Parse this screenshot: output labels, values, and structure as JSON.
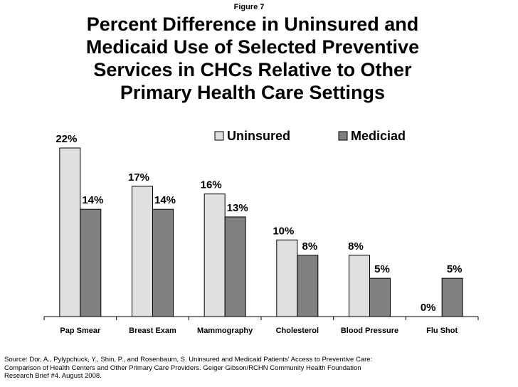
{
  "figure_label": "Figure 7",
  "title_lines": [
    "Percent Difference in Uninsured and",
    "Medicaid Use of Selected Preventive",
    "Services in CHCs Relative to Other",
    "Primary Health Care Settings"
  ],
  "source_lines": [
    "Source: Dor, A., Pylypchuck, Y., Shin, P., and Rosenbaum, S. Uninsured and Medicaid Patients' Access to Preventive Care:",
    "Comparison of Health Centers and Other Primary Care Providers. Geiger Gibson/RCHN Community Health Foundation",
    "Research Brief #4. August 2008."
  ],
  "colors": {
    "uninsured": "#e0e0e0",
    "medicaid": "#808080",
    "stroke": "#000000"
  },
  "chart_data": {
    "type": "bar",
    "title": "Percent Difference in Uninsured and Medicaid Use of Selected Preventive Services in CHCs Relative to Other Primary Health Care Settings",
    "categories": [
      "Pap Smear",
      "Breast Exam",
      "Mammography",
      "Cholesterol",
      "Blood Pressure",
      "Flu Shot"
    ],
    "series": [
      {
        "name": "Uninsured",
        "values": [
          22,
          17,
          16,
          10,
          8,
          0
        ],
        "labels": [
          "22%",
          "17%",
          "16%",
          "10%",
          "8%",
          "0%"
        ]
      },
      {
        "name": "Mediciad",
        "values": [
          14,
          14,
          13,
          8,
          5,
          5
        ],
        "labels": [
          "14%",
          "14%",
          "13%",
          "8%",
          "5%",
          "5%"
        ]
      }
    ],
    "unit": "%",
    "ylim": [
      0,
      22
    ],
    "legend_position": "top-right",
    "grid": false
  }
}
